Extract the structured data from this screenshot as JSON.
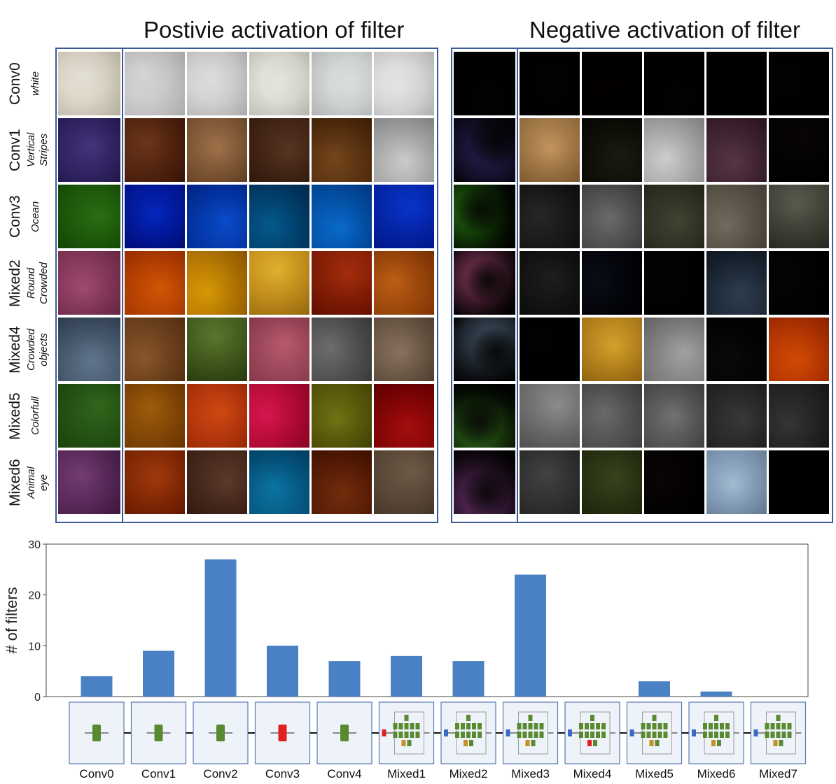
{
  "titles": {
    "positive": "Postivie activation of filter",
    "negative": "Negative activation of filter"
  },
  "rows": [
    {
      "layer": "Conv0",
      "concept": [
        "white"
      ],
      "pos_tint": [
        "#f2efe8",
        "#e9e9ea",
        "#ededed",
        "#f3f4ee",
        "#eef0f0",
        "#f2f2f2"
      ],
      "neg_tint": [
        "#0d0b14",
        "#0f1810",
        "#1d0504",
        "#170707",
        "#0e0a05",
        "#1a0a08"
      ],
      "viz": "#f3efe7"
    },
    {
      "layer": "Conv1",
      "concept": [
        "Vertical",
        "Stripes"
      ],
      "pos_tint": [
        "#6a8ac0",
        "#9a6a48",
        "#bfa080",
        "#8c6b55",
        "#a07a4a",
        "#d8d8d8"
      ],
      "neg_tint": [
        "#5a6a4a",
        "#d4b890",
        "#4a4a3a",
        "#d8d8d8",
        "#8a6a7a",
        "#2a2020"
      ],
      "viz": "#7a6aa8"
    },
    {
      "layer": "Conv3",
      "concept": [
        "Ocean"
      ],
      "pos_tint": [
        "#a8b0b8",
        "#1a5ad0",
        "#2a80d8",
        "#1a8ab0",
        "#2a9ad8",
        "#2a6ad8"
      ],
      "neg_tint": [
        "#9a9a9a",
        "#5a5a5a",
        "#9a9a9a",
        "#7a7a6a",
        "#a09a90",
        "#8a8a80"
      ],
      "viz": "#60a040"
    },
    {
      "layer": "Mixed2",
      "concept": [
        "Round",
        "Crowded"
      ],
      "pos_tint": [
        "#c070a0",
        "#e08a20",
        "#e0b820",
        "#e8c860",
        "#c06030",
        "#d09040"
      ],
      "neg_tint": [
        "#8a90a8",
        "#505050",
        "#2a3040",
        "#1a1a1a",
        "#607080",
        "#202020"
      ],
      "viz": "#c080a0"
    },
    {
      "layer": "Mixed4",
      "concept": [
        "Crowded",
        "objects"
      ],
      "pos_tint": [
        "#a07860",
        "#b08a60",
        "#8aa060",
        "#d090a0",
        "#9a9a9a",
        "#b0a090"
      ],
      "neg_tint": [
        "#9a90a0",
        "#101010",
        "#e0c060",
        "#c0c0c0",
        "#2a2a2a",
        "#e08020"
      ],
      "viz": "#90a0b0"
    },
    {
      "layer": "Mixed5",
      "concept": [
        "Colorfull"
      ],
      "pos_tint": [
        "#50a040",
        "#c09030",
        "#e08040",
        "#e04080",
        "#a0a040",
        "#c03030"
      ],
      "neg_tint": [
        "#c0b0a0",
        "#b0b0b0",
        "#9a9a9a",
        "#a0a0a0",
        "#707070",
        "#6a6a6a"
      ],
      "viz": "#6a9a50"
    },
    {
      "layer": "Mixed6",
      "concept": [
        "Animal",
        "eye"
      ],
      "pos_tint": [
        "#a08090",
        "#c07030",
        "#907060",
        "#30a0c0",
        "#a06030",
        "#a09080"
      ],
      "neg_tint": [
        "#7a9080",
        "#7a7a7a",
        "#707a50",
        "#2a1a1a",
        "#c0d0e0",
        "#0a0a0a"
      ],
      "viz": "#a070a0"
    }
  ],
  "chart_data": {
    "type": "bar",
    "categories": [
      "Conv0",
      "Conv1",
      "Conv2",
      "Conv3",
      "Conv4",
      "Mixed1",
      "Mixed2",
      "Mixed3",
      "Mixed4",
      "Mixed5",
      "Mixed6",
      "Mixed7"
    ],
    "values": [
      4,
      9,
      27,
      10,
      7,
      8,
      7,
      24,
      0,
      3,
      1,
      0
    ],
    "title": "",
    "xlabel": "",
    "ylabel": "# of filters",
    "ylim": [
      0,
      30
    ],
    "yticks": [
      0,
      10,
      20,
      30
    ],
    "grid": false,
    "bar_color": "#4a80c4",
    "legend": "none"
  },
  "architecture": [
    {
      "name": "Conv0",
      "kind": "conv",
      "highlight": "green"
    },
    {
      "name": "Conv1",
      "kind": "conv",
      "highlight": "green"
    },
    {
      "name": "Conv2",
      "kind": "conv",
      "highlight": "green"
    },
    {
      "name": "Conv3",
      "kind": "conv",
      "highlight": "red"
    },
    {
      "name": "Conv4",
      "kind": "conv",
      "highlight": "green"
    },
    {
      "name": "Mixed1",
      "kind": "mixed",
      "in_color": "red",
      "out_color": "orange"
    },
    {
      "name": "Mixed2",
      "kind": "mixed",
      "in_color": "blue",
      "out_color": "orange"
    },
    {
      "name": "Mixed3",
      "kind": "mixed",
      "in_color": "blue",
      "out_color": "orange"
    },
    {
      "name": "Mixed4",
      "kind": "mixed",
      "in_color": "blue",
      "out_color": "red"
    },
    {
      "name": "Mixed5",
      "kind": "mixed",
      "in_color": "blue",
      "out_color": "orange"
    },
    {
      "name": "Mixed6",
      "kind": "mixed",
      "in_color": "blue",
      "out_color": "orange"
    },
    {
      "name": "Mixed7",
      "kind": "mixed",
      "in_color": "blue",
      "out_color": "orange"
    }
  ]
}
